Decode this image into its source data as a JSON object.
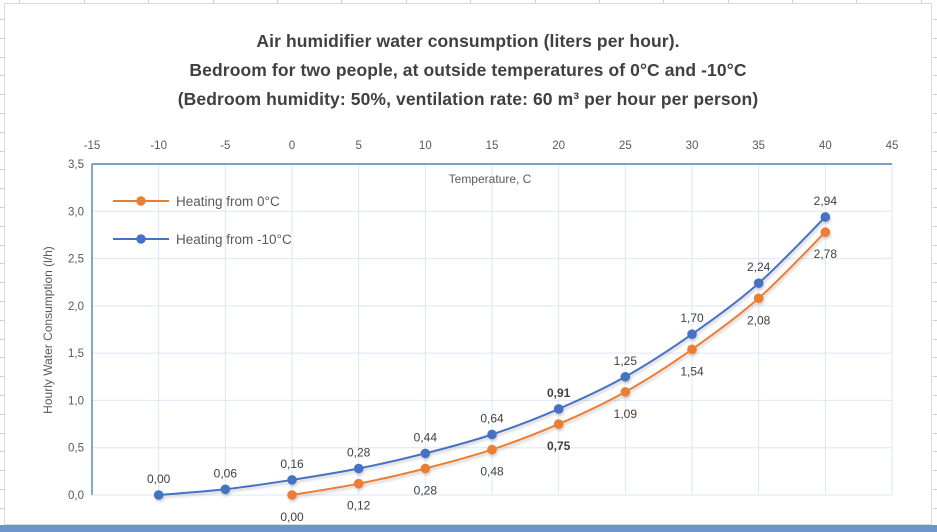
{
  "chart_data": {
    "type": "line",
    "title": "Air humidifier water consumption (liters per hour). Bedroom for two people, at outside temperatures of 0°C and -10°C (Bedroom humidity: 50%, ventilation rate: 60 m³ per hour per person)",
    "title_lines": [
      "Air humidifier water consumption (liters per hour).",
      "Bedroom for two people, at outside temperatures of 0°C and -10°C",
      "(Bedroom humidity: 50%, ventilation rate: 60 m³ per hour per person)"
    ],
    "xlabel": "Temperature, C",
    "ylabel": "Hourly Water Consumption (l/h)",
    "xlim": [
      -15,
      45
    ],
    "ylim": [
      0,
      3.5
    ],
    "grid": true,
    "x_ticks": [
      "-15",
      "-10",
      "-5",
      "0",
      "5",
      "10",
      "15",
      "20",
      "25",
      "30",
      "35",
      "40",
      "45"
    ],
    "y_ticks": [
      "0,0",
      "0,5",
      "1,0",
      "1,5",
      "2,0",
      "2,5",
      "3,0",
      "3,5"
    ],
    "legend_position": "inside-top-left",
    "decimal_separator": ",",
    "series": [
      {
        "name": "Heating from 0°C",
        "color": "#ED7D31",
        "x": [
          0,
          5,
          10,
          15,
          20,
          25,
          30,
          35,
          40
        ],
        "y": [
          0.0,
          0.12,
          0.28,
          0.48,
          0.75,
          1.09,
          1.54,
          2.08,
          2.78
        ],
        "point_labels": [
          "0,00",
          "0,12",
          "0,28",
          "0,48",
          "0,75",
          "1,09",
          "1,54",
          "2,08",
          "2,78"
        ],
        "label_side": "below",
        "bold_label_indices": [
          4
        ]
      },
      {
        "name": "Heating from -10°C",
        "color": "#4472C4",
        "x": [
          -10,
          -5,
          0,
          5,
          10,
          15,
          20,
          25,
          30,
          35,
          40
        ],
        "y": [
          0.0,
          0.06,
          0.16,
          0.28,
          0.44,
          0.64,
          0.91,
          1.25,
          1.7,
          2.24,
          2.94
        ],
        "point_labels": [
          "0,00",
          "0,06",
          "0,16",
          "0,28",
          "0,44",
          "0,64",
          "0,91",
          "1,25",
          "1,70",
          "2,24",
          "2,94"
        ],
        "label_side": "above",
        "bold_label_indices": [
          6
        ]
      }
    ],
    "colors": {
      "grid": "#dbe7f5",
      "axis": "#4d82bc",
      "data_label_text": "#3f3f3f",
      "tick_text": "#595959"
    }
  }
}
